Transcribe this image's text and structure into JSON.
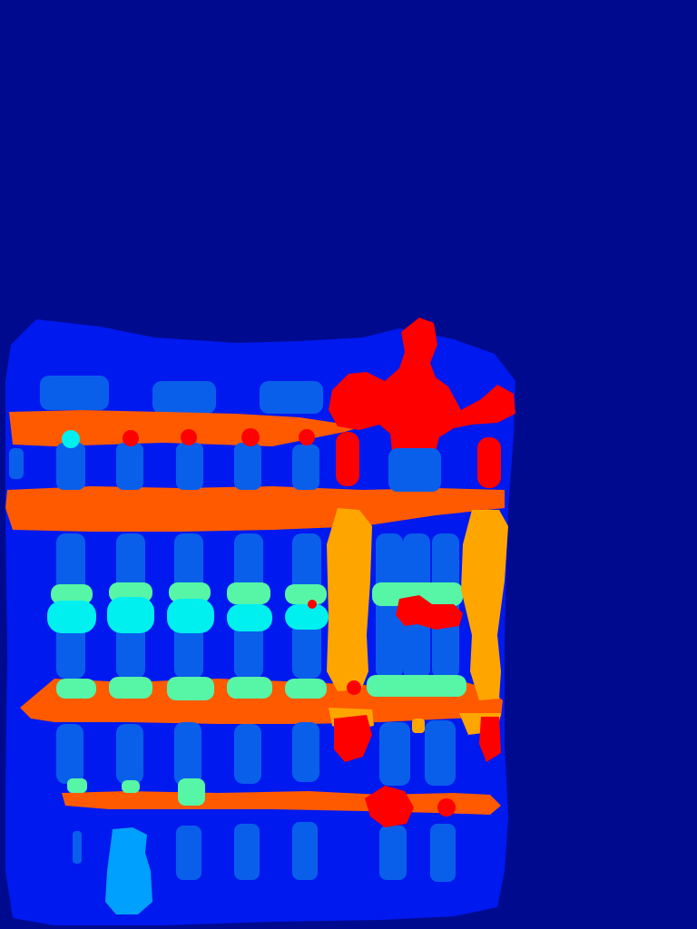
{
  "image": {
    "kind": "segmentation-map",
    "palette": {
      "background": "#000a8f",
      "structure": "#0019ef",
      "column": "#0a5fea",
      "rail": "#ff5a00",
      "ring_light": "#57f5a6",
      "ring_cyan": "#00f0f0",
      "figure": "#ff0000",
      "pillar": "#ffa500",
      "block": "#00a0ff"
    }
  }
}
